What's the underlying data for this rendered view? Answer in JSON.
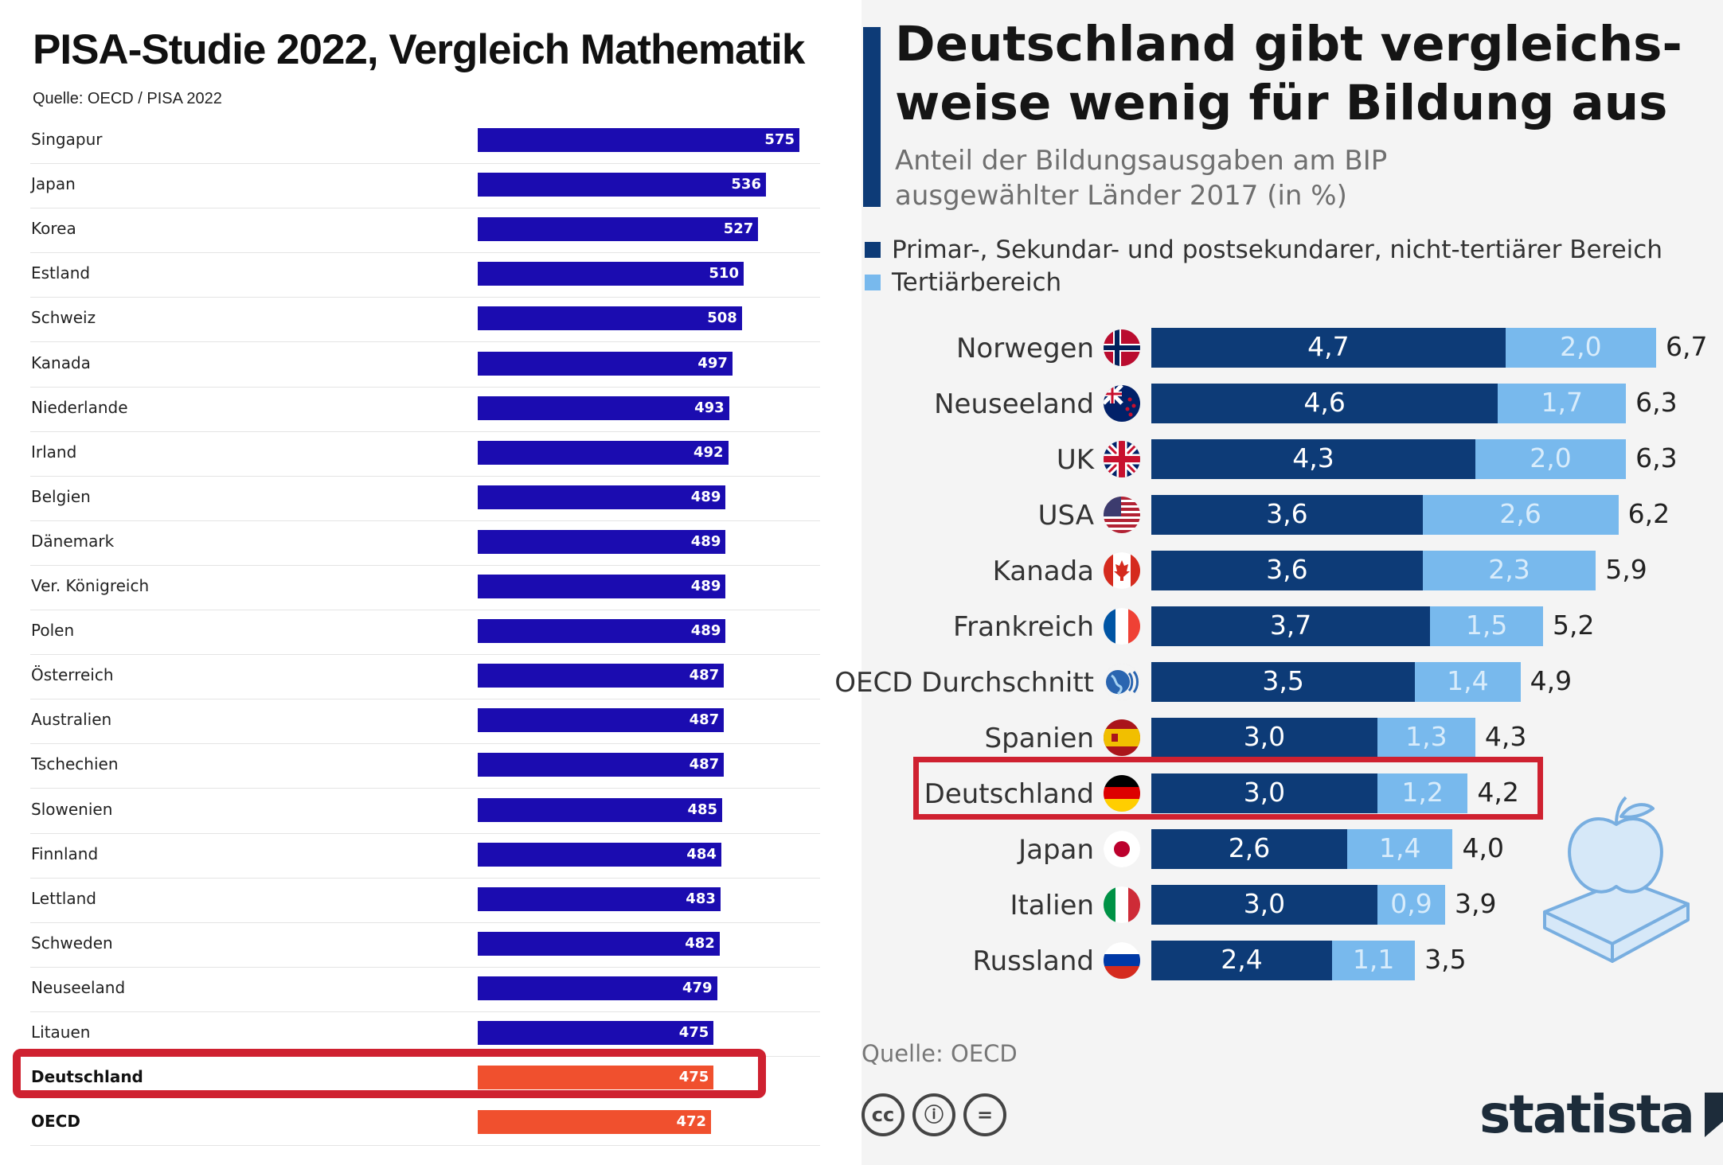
{
  "left_panel": {
    "title": "PISA-Studie 2022, Vergleich Mathematik",
    "source": "Quelle: OECD / PISA 2022"
  },
  "right_panel": {
    "title_line1": "Deutschland gibt vergleichs-",
    "title_line2": "weise wenig für Bildung aus",
    "subtitle_line1": "Anteil der Bildungsausgaben am BIP",
    "subtitle_line2": "ausgewählter Länder 2017 (in %)",
    "legend": [
      {
        "label": "Primar-, Sekundar- und postsekundarer, nicht-tertiärer Bereich",
        "color": "#0d3b77"
      },
      {
        "label": "Tertiärbereich",
        "color": "#78b9ed"
      }
    ],
    "source": "Quelle: OECD",
    "cc_icons": [
      "cc",
      "ⓘ",
      "="
    ],
    "logo_text": "statista"
  },
  "colors": {
    "left_bar": "#1b0cb0",
    "left_bar_highlight": "#f0502e",
    "highlight_border": "#cf2130",
    "right_primary": "#0d3b77",
    "right_tertiary": "#78b9ed"
  },
  "chart_data": [
    {
      "type": "bar",
      "orientation": "horizontal",
      "title": "PISA-Studie 2022, Vergleich Mathematik",
      "categories": [
        "Singapur",
        "Japan",
        "Korea",
        "Estland",
        "Schweiz",
        "Kanada",
        "Niederlande",
        "Irland",
        "Belgien",
        "Dänemark",
        "Ver. Königreich",
        "Polen",
        "Österreich",
        "Australien",
        "Tschechien",
        "Slowenien",
        "Finnland",
        "Lettland",
        "Schweden",
        "Neuseeland",
        "Litauen",
        "Deutschland",
        "OECD"
      ],
      "values": [
        575,
        536,
        527,
        510,
        508,
        497,
        493,
        492,
        489,
        489,
        489,
        489,
        487,
        487,
        487,
        485,
        484,
        483,
        482,
        479,
        475,
        475,
        472
      ],
      "highlighted": [
        "Deutschland",
        "OECD"
      ],
      "boxed": "Deutschland",
      "xlim": [
        200,
        590
      ],
      "grid": false
    },
    {
      "type": "bar",
      "orientation": "horizontal",
      "stacked": true,
      "title": "Deutschland gibt vergleichsweise wenig für Bildung aus",
      "subtitle": "Anteil der Bildungsausgaben am BIP ausgewählter Länder 2017 (in %)",
      "categories": [
        "Norwegen",
        "Neuseeland",
        "UK",
        "USA",
        "Kanada",
        "Frankreich",
        "OECD Durchschnitt",
        "Spanien",
        "Deutschland",
        "Japan",
        "Italien",
        "Russland"
      ],
      "flags": [
        "norway-flag-icon",
        "new-zealand-flag-icon",
        "uk-flag-icon",
        "usa-flag-icon",
        "canada-flag-icon",
        "france-flag-icon",
        "globe-icon",
        "spain-flag-icon",
        "germany-flag-icon",
        "japan-flag-icon",
        "italy-flag-icon",
        "russia-flag-icon"
      ],
      "series": [
        {
          "name": "Primar-, Sekundar- und postsekundarer, nicht-tertiärer Bereich",
          "values": [
            "4,7",
            "4,6",
            "4,3",
            "3,6",
            "3,6",
            "3,7",
            "3,5",
            "3,0",
            "3,0",
            "2,6",
            "3,0",
            "2,4"
          ]
        },
        {
          "name": "Tertiärbereich",
          "values": [
            "2,0",
            "1,7",
            "2,0",
            "2,6",
            "2,3",
            "1,5",
            "1,4",
            "1,3",
            "1,2",
            "1,4",
            "0,9",
            "1,1"
          ]
        }
      ],
      "totals": [
        "6,7",
        "6,3",
        "6,3",
        "6,2",
        "5,9",
        "5,2",
        "4,9",
        "4,3",
        "4,2",
        "4,0",
        "3,9",
        "3,5"
      ],
      "boxed": "Deutschland",
      "grid": false,
      "legend_position": "top-left"
    }
  ]
}
